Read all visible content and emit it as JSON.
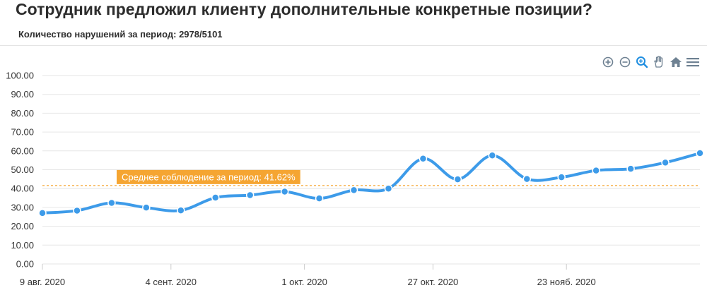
{
  "header": {
    "title": "Сотрудник предложил клиенту дополнительные конкретные позиции?",
    "subtitle": "Количество нарушений за период: 2978/5101"
  },
  "toolbar": {
    "icons": [
      "zoom-in-icon",
      "zoom-out-icon",
      "zoom-select-icon",
      "pan-hand-icon",
      "home-reset-icon",
      "menu-icon"
    ]
  },
  "colors": {
    "line": "#3d9be9",
    "average": "#f5a532",
    "grid": "#e6e6e6",
    "icon": "#6e8192",
    "icon_active": "#1f8ee0"
  },
  "chart_data": {
    "type": "line",
    "ylim": [
      0,
      100
    ],
    "y_ticks": [
      "0.00",
      "10.00",
      "20.00",
      "30.00",
      "40.00",
      "50.00",
      "60.00",
      "70.00",
      "80.00",
      "90.00",
      "100.00"
    ],
    "x_start": "2020-08-09",
    "x_end": "2020-12-20",
    "x_ticks": [
      {
        "date": "2020-08-09",
        "label": "9 авг. 2020"
      },
      {
        "date": "2020-09-04",
        "label": "4 сент. 2020"
      },
      {
        "date": "2020-10-01",
        "label": "1 окт. 2020"
      },
      {
        "date": "2020-10-27",
        "label": "27 окт. 2020"
      },
      {
        "date": "2020-11-23",
        "label": "23 нояб. 2020"
      }
    ],
    "series": [
      {
        "points": [
          {
            "x": "2020-08-09",
            "y": 27.0
          },
          {
            "x": "2020-08-16",
            "y": 28.3
          },
          {
            "x": "2020-08-23",
            "y": 32.4
          },
          {
            "x": "2020-08-30",
            "y": 29.9
          },
          {
            "x": "2020-09-06",
            "y": 28.4
          },
          {
            "x": "2020-09-13",
            "y": 35.2
          },
          {
            "x": "2020-09-20",
            "y": 36.5
          },
          {
            "x": "2020-09-27",
            "y": 38.4
          },
          {
            "x": "2020-10-04",
            "y": 34.8
          },
          {
            "x": "2020-10-11",
            "y": 39.2
          },
          {
            "x": "2020-10-18",
            "y": 40.0
          },
          {
            "x": "2020-10-25",
            "y": 55.9
          },
          {
            "x": "2020-11-01",
            "y": 44.9
          },
          {
            "x": "2020-11-08",
            "y": 57.6
          },
          {
            "x": "2020-11-15",
            "y": 45.1
          },
          {
            "x": "2020-11-22",
            "y": 46.0
          },
          {
            "x": "2020-11-29",
            "y": 49.6
          },
          {
            "x": "2020-12-06",
            "y": 50.5
          },
          {
            "x": "2020-12-13",
            "y": 53.8
          },
          {
            "x": "2020-12-20",
            "y": 58.8
          }
        ]
      }
    ],
    "average": {
      "value": 41.62,
      "label": "Среднее соблюдение за период: 41.62%"
    }
  }
}
